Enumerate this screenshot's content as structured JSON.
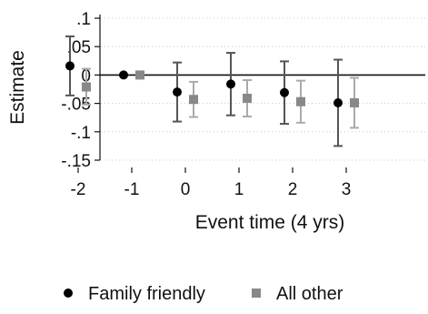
{
  "chart_data": {
    "type": "scatter",
    "title": "",
    "xlabel": "Event time (4 yrs)",
    "ylabel": "Estimate",
    "x_ticks": [
      -2,
      -1,
      0,
      1,
      2,
      3
    ],
    "y_ticks": [
      0.1,
      0.05,
      0,
      -0.05,
      -0.1,
      -0.15
    ],
    "y_tick_labels": [
      ".1",
      ".05",
      "0",
      "-.05",
      "-.1",
      "-.15"
    ],
    "ylim": [
      -0.15,
      0.1
    ],
    "grid": true,
    "legend_position": "bottom",
    "series": [
      {
        "name": "Family friendly",
        "marker": "circle",
        "color": "#000000",
        "errorbar_color": "#555555",
        "points": [
          {
            "x": -2,
            "y": 0.016,
            "lo": -0.036,
            "hi": 0.068
          },
          {
            "x": -1,
            "y": 0.0,
            "lo": 0.0,
            "hi": 0.0
          },
          {
            "x": 0,
            "y": -0.03,
            "lo": -0.082,
            "hi": 0.022
          },
          {
            "x": 1,
            "y": -0.016,
            "lo": -0.071,
            "hi": 0.039
          },
          {
            "x": 2,
            "y": -0.031,
            "lo": -0.086,
            "hi": 0.024
          },
          {
            "x": 3,
            "y": -0.049,
            "lo": -0.125,
            "hi": 0.027
          }
        ]
      },
      {
        "name": "All other",
        "marker": "square",
        "color": "#888888",
        "errorbar_color": "#aaaaaa",
        "points": [
          {
            "x": -2,
            "y": -0.021,
            "lo": -0.052,
            "hi": 0.011
          },
          {
            "x": -1,
            "y": 0.0,
            "lo": 0.0,
            "hi": 0.0
          },
          {
            "x": 0,
            "y": -0.043,
            "lo": -0.074,
            "hi": -0.012
          },
          {
            "x": 1,
            "y": -0.041,
            "lo": -0.073,
            "hi": -0.009
          },
          {
            "x": 2,
            "y": -0.047,
            "lo": -0.084,
            "hi": -0.01
          },
          {
            "x": 3,
            "y": -0.049,
            "lo": -0.093,
            "hi": -0.005
          }
        ]
      }
    ]
  }
}
